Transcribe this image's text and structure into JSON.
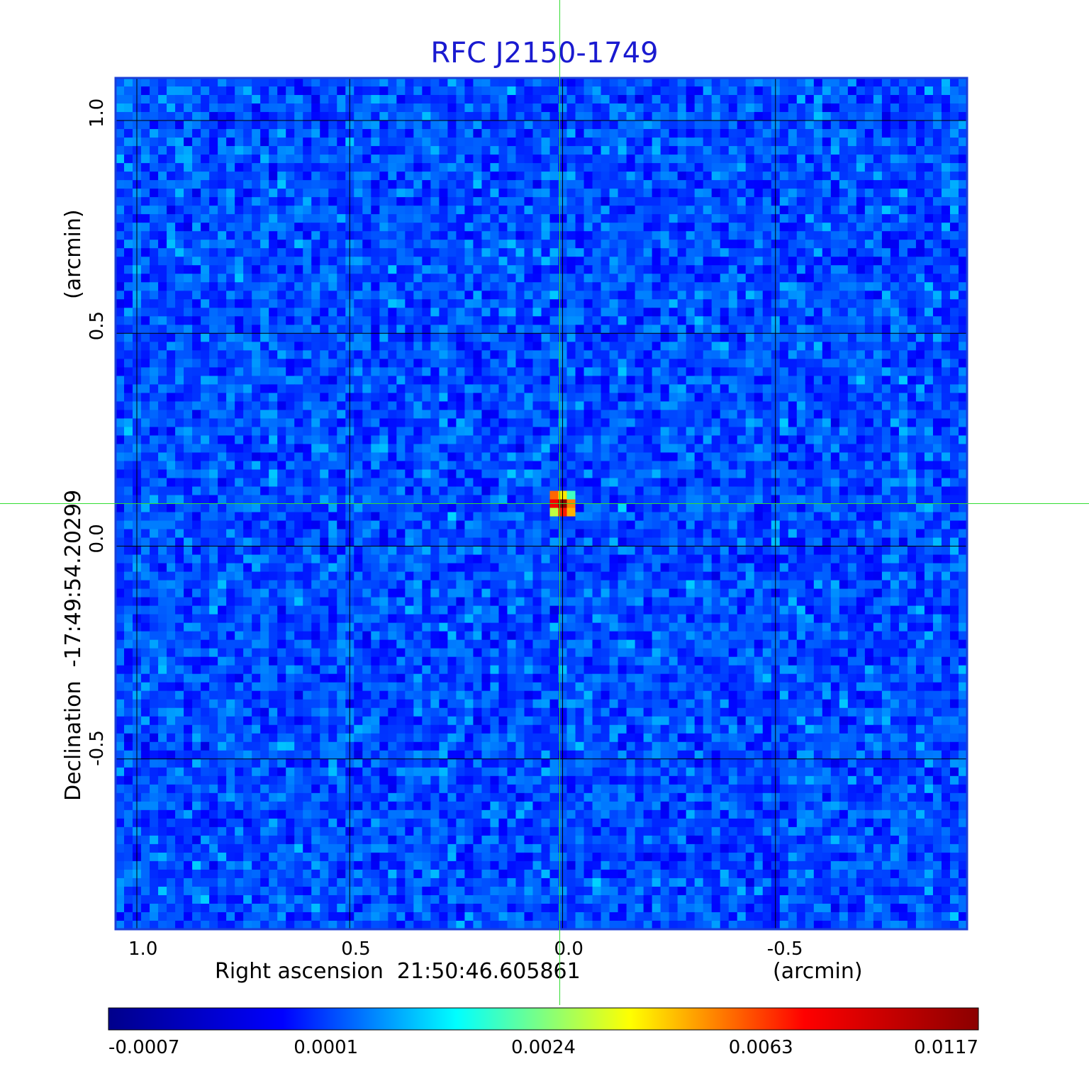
{
  "chart_data": {
    "type": "heatmap",
    "title": "RFC J2150-1749",
    "xlabel": "Right ascension  21:50:46.605861",
    "xunit": "(arcmin)",
    "ylabel": "Declination  -17:49:54.20299",
    "yunit": "(arcmin)",
    "xlim": [
      1.05,
      -0.95
    ],
    "ylim": [
      -0.9,
      1.1
    ],
    "xticks": [
      {
        "value": 1.0,
        "label": "1.0"
      },
      {
        "value": 0.5,
        "label": "0.5"
      },
      {
        "value": 0.0,
        "label": "0.0"
      },
      {
        "value": -0.5,
        "label": "-0.5"
      }
    ],
    "yticks": [
      {
        "value": -0.5,
        "label": "-0.5"
      },
      {
        "value": 0.0,
        "label": "0.0"
      },
      {
        "value": 0.5,
        "label": "0.5"
      },
      {
        "value": 1.0,
        "label": "1.0"
      }
    ],
    "grid": true,
    "source": {
      "x": 0.0,
      "y": 0.1,
      "peak": 0.0117
    },
    "crosshair": {
      "x": 0.0,
      "y": 0.1
    },
    "colorbar": {
      "ticks": [
        "-0.0007",
        "0.0001",
        "0.0024",
        "0.0063",
        "0.0117"
      ],
      "colors": [
        "#00008b",
        "#0000ff",
        "#00ffff",
        "#ffff00",
        "#ff0000",
        "#8b0000"
      ]
    }
  }
}
